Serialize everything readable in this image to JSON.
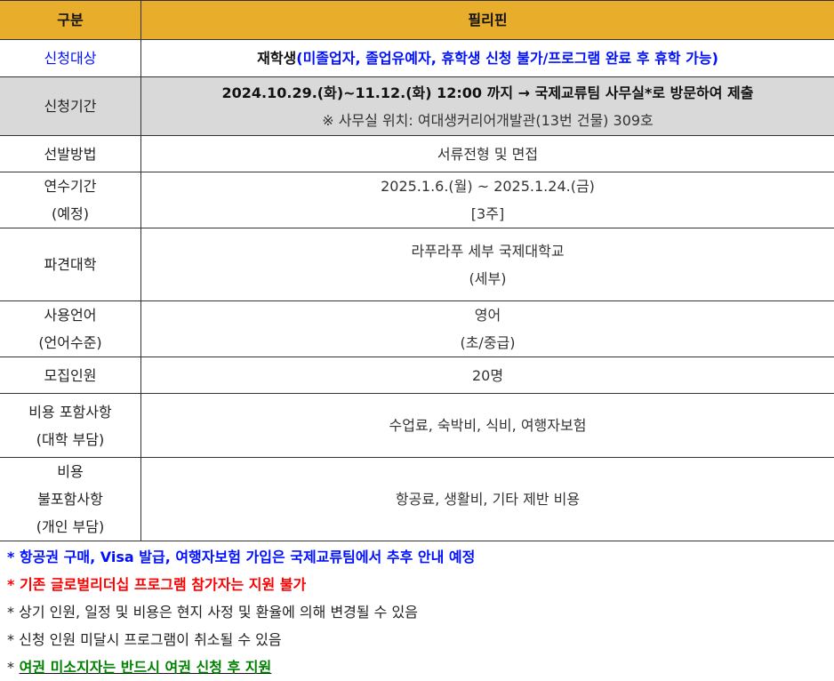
{
  "header": {
    "col1": "구분",
    "col2": "필리핀"
  },
  "rows": [
    {
      "label": "신청대상",
      "lines": [
        "재학생",
        "(미졸업자, 졸업유예자, 휴학생 신청 불가/프로그램 완료 후 휴학 가능)"
      ]
    },
    {
      "label": "신청기간",
      "lines": [
        "2024.10.29.(화)~11.12.(화) 12:00 까지 → 국제교류팀 사무실*로 방문하여 제출",
        "※ 사무실 위치: 여대생커리어개발관(13번 건물) 309호"
      ]
    },
    {
      "label": "선발방법",
      "lines": [
        "서류전형 및 면접"
      ]
    },
    {
      "label": [
        "연수기간",
        "(예정)"
      ],
      "lines": [
        "2025.1.6.(월) ~ 2025.1.24.(금)",
        "[3주]"
      ]
    },
    {
      "label": "파견대학",
      "lines": [
        "라푸라푸 세부 국제대학교",
        "(세부)"
      ]
    },
    {
      "label": [
        "사용언어",
        "(언어수준)"
      ],
      "lines": [
        "영어",
        "(초/중급)"
      ]
    },
    {
      "label": "모집인원",
      "lines": [
        "20명"
      ]
    },
    {
      "label": [
        "비용 포함사항",
        "(대학 부담)"
      ],
      "lines": [
        "수업료, 숙박비, 식비, 여행자보험"
      ]
    },
    {
      "label": [
        "비용",
        "불포함사항",
        "(개인 부담)"
      ],
      "lines": [
        "항공료, 생활비, 기타 제반 비용"
      ]
    }
  ],
  "notes": [
    {
      "bullet": "*",
      "text": "항공권 구매, Visa 발급, 여행자보험 가입은 국제교류팀에서 추후 안내 예정",
      "color": "#0010ff"
    },
    {
      "bullet": "*",
      "text": "기존 글로벌리더십 프로그램 참가자는 지원 불가",
      "color": "#ff0000"
    },
    {
      "bullet": "*",
      "text": "상기 인원, 일정 및 비용은 현지 사정 및 환율에 의해 변경될 수 있음",
      "color": "#222222"
    },
    {
      "bullet": "*",
      "text": "신청 인원 미달시 프로그램이 취소될 수 있음",
      "color": "#222222"
    },
    {
      "bullet": "*",
      "text": "여권 미소지자는 반드시 여권 신청 후 지원",
      "color": "#008000"
    }
  ],
  "colors": {
    "header_bg": "#e9ad2c",
    "gray_row_bg": "#d9d9d9",
    "accent_blue": "#0010ff"
  }
}
